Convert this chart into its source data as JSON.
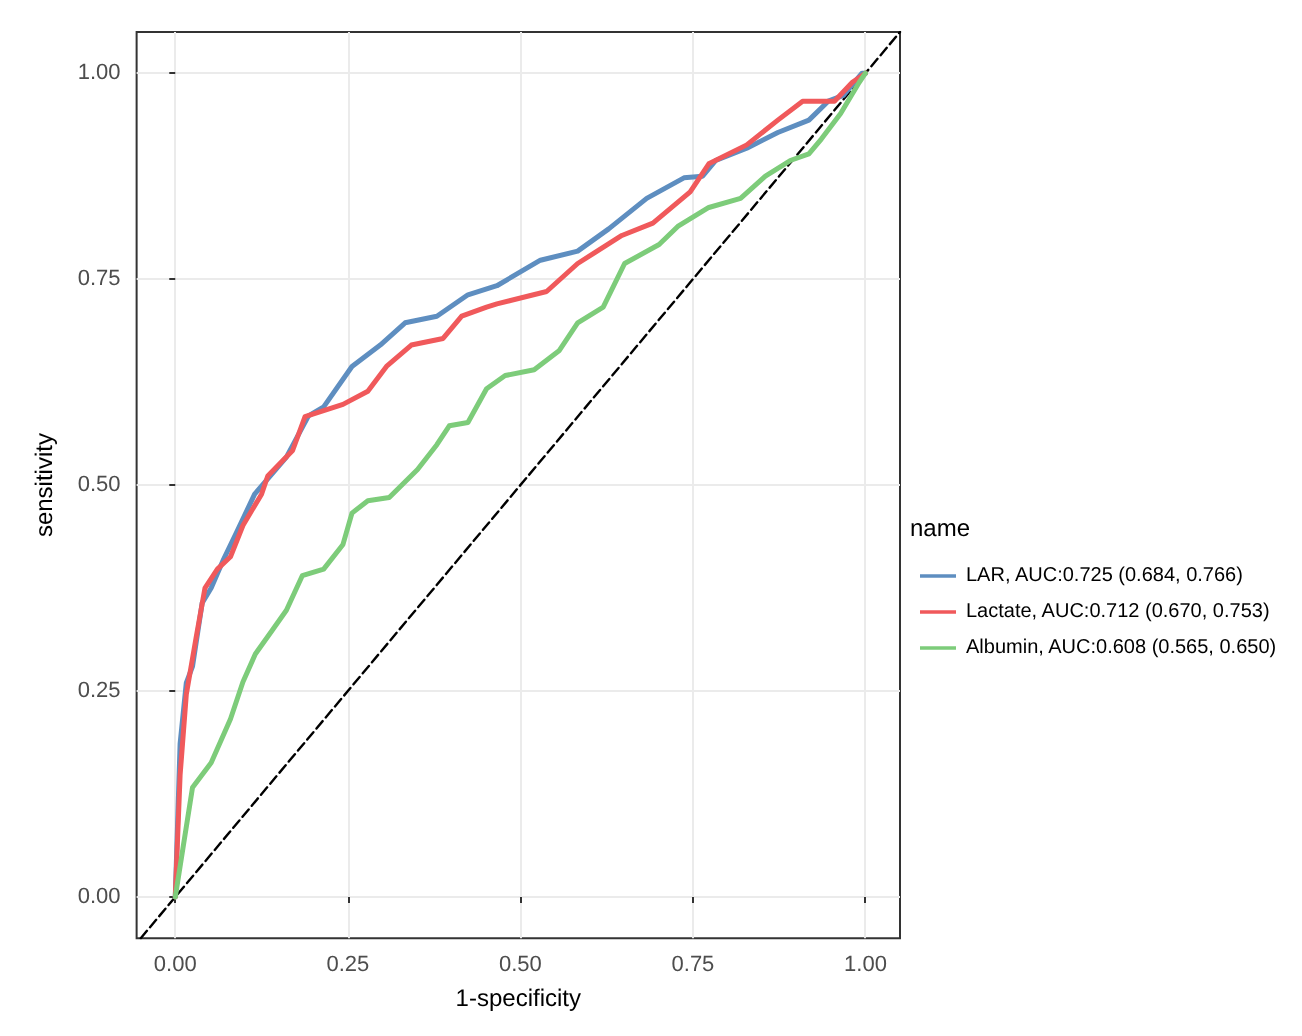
{
  "chart_data": {
    "type": "line",
    "xlabel": "1-specificity",
    "ylabel": "sensitivity",
    "legend_title": "name",
    "legend": "right",
    "grid": true,
    "line_style": "solid",
    "marker": "none",
    "xlim": [
      -0.056,
      1.05
    ],
    "ylim": [
      -0.05,
      1.05
    ],
    "xticks": [
      {
        "value": 0,
        "label": "0.00"
      },
      {
        "value": 0.25,
        "label": "0.25"
      },
      {
        "value": 0.5,
        "label": "0.50"
      },
      {
        "value": 0.75,
        "label": "0.75"
      },
      {
        "value": 1,
        "label": "1.00"
      }
    ],
    "yticks": [
      {
        "value": 0,
        "label": "0.00"
      },
      {
        "value": 0.25,
        "label": "0.25"
      },
      {
        "value": 0.5,
        "label": "0.50"
      },
      {
        "value": 0.75,
        "label": "0.75"
      },
      {
        "value": 1,
        "label": "1.00"
      }
    ],
    "series": [
      {
        "name": "LAR, AUC:0.725 (0.684, 0.766)",
        "color": "#5e8ec0",
        "x": [
          0,
          0.007,
          0.016,
          0.025,
          0.039,
          0.052,
          0.07,
          0.089,
          0.115,
          0.161,
          0.193,
          0.215,
          0.256,
          0.297,
          0.333,
          0.379,
          0.424,
          0.466,
          0.529,
          0.583,
          0.628,
          0.683,
          0.737,
          0.764,
          0.783,
          0.828,
          0.873,
          0.918,
          0.946,
          0.968,
          0.995,
          1
        ],
        "values": [
          0,
          0.186,
          0.26,
          0.28,
          0.357,
          0.375,
          0.41,
          0.443,
          0.489,
          0.534,
          0.584,
          0.595,
          0.644,
          0.67,
          0.697,
          0.705,
          0.731,
          0.742,
          0.773,
          0.784,
          0.811,
          0.848,
          0.873,
          0.875,
          0.894,
          0.909,
          0.928,
          0.943,
          0.966,
          0.973,
          1,
          1
        ]
      },
      {
        "name": "Lactate, AUC:0.712 (0.670, 0.753)",
        "color": "#f0595b",
        "x": [
          0,
          0.007,
          0.016,
          0.03,
          0.043,
          0.061,
          0.08,
          0.098,
          0.125,
          0.134,
          0.17,
          0.188,
          0.243,
          0.279,
          0.306,
          0.342,
          0.388,
          0.415,
          0.451,
          0.466,
          0.538,
          0.583,
          0.647,
          0.692,
          0.746,
          0.773,
          0.828,
          0.873,
          0.909,
          0.955,
          0.981,
          1
        ],
        "values": [
          0,
          0.148,
          0.246,
          0.314,
          0.375,
          0.398,
          0.413,
          0.451,
          0.489,
          0.511,
          0.542,
          0.583,
          0.598,
          0.614,
          0.644,
          0.67,
          0.678,
          0.705,
          0.716,
          0.72,
          0.735,
          0.769,
          0.803,
          0.818,
          0.856,
          0.89,
          0.913,
          0.943,
          0.966,
          0.966,
          0.989,
          1
        ]
      },
      {
        "name": "Albumin, AUC:0.608 (0.565, 0.650)",
        "color": "#7dcc7a",
        "x": [
          0,
          0.012,
          0.025,
          0.052,
          0.08,
          0.098,
          0.116,
          0.139,
          0.161,
          0.184,
          0.215,
          0.243,
          0.256,
          0.279,
          0.31,
          0.351,
          0.379,
          0.397,
          0.424,
          0.451,
          0.478,
          0.52,
          0.556,
          0.583,
          0.62,
          0.651,
          0.701,
          0.728,
          0.773,
          0.819,
          0.855,
          0.891,
          0.918,
          0.936,
          0.964,
          0.991,
          1
        ],
        "values": [
          0,
          0.064,
          0.133,
          0.163,
          0.216,
          0.261,
          0.295,
          0.322,
          0.348,
          0.39,
          0.398,
          0.428,
          0.466,
          0.481,
          0.485,
          0.519,
          0.549,
          0.572,
          0.576,
          0.617,
          0.633,
          0.64,
          0.663,
          0.697,
          0.716,
          0.769,
          0.792,
          0.814,
          0.837,
          0.848,
          0.875,
          0.894,
          0.902,
          0.92,
          0.951,
          0.989,
          1
        ]
      },
      {
        "color": "#000000",
        "line_style": "dashed",
        "x": [
          -0.05,
          1.05
        ],
        "values": [
          -0.05,
          1.05
        ]
      }
    ]
  }
}
